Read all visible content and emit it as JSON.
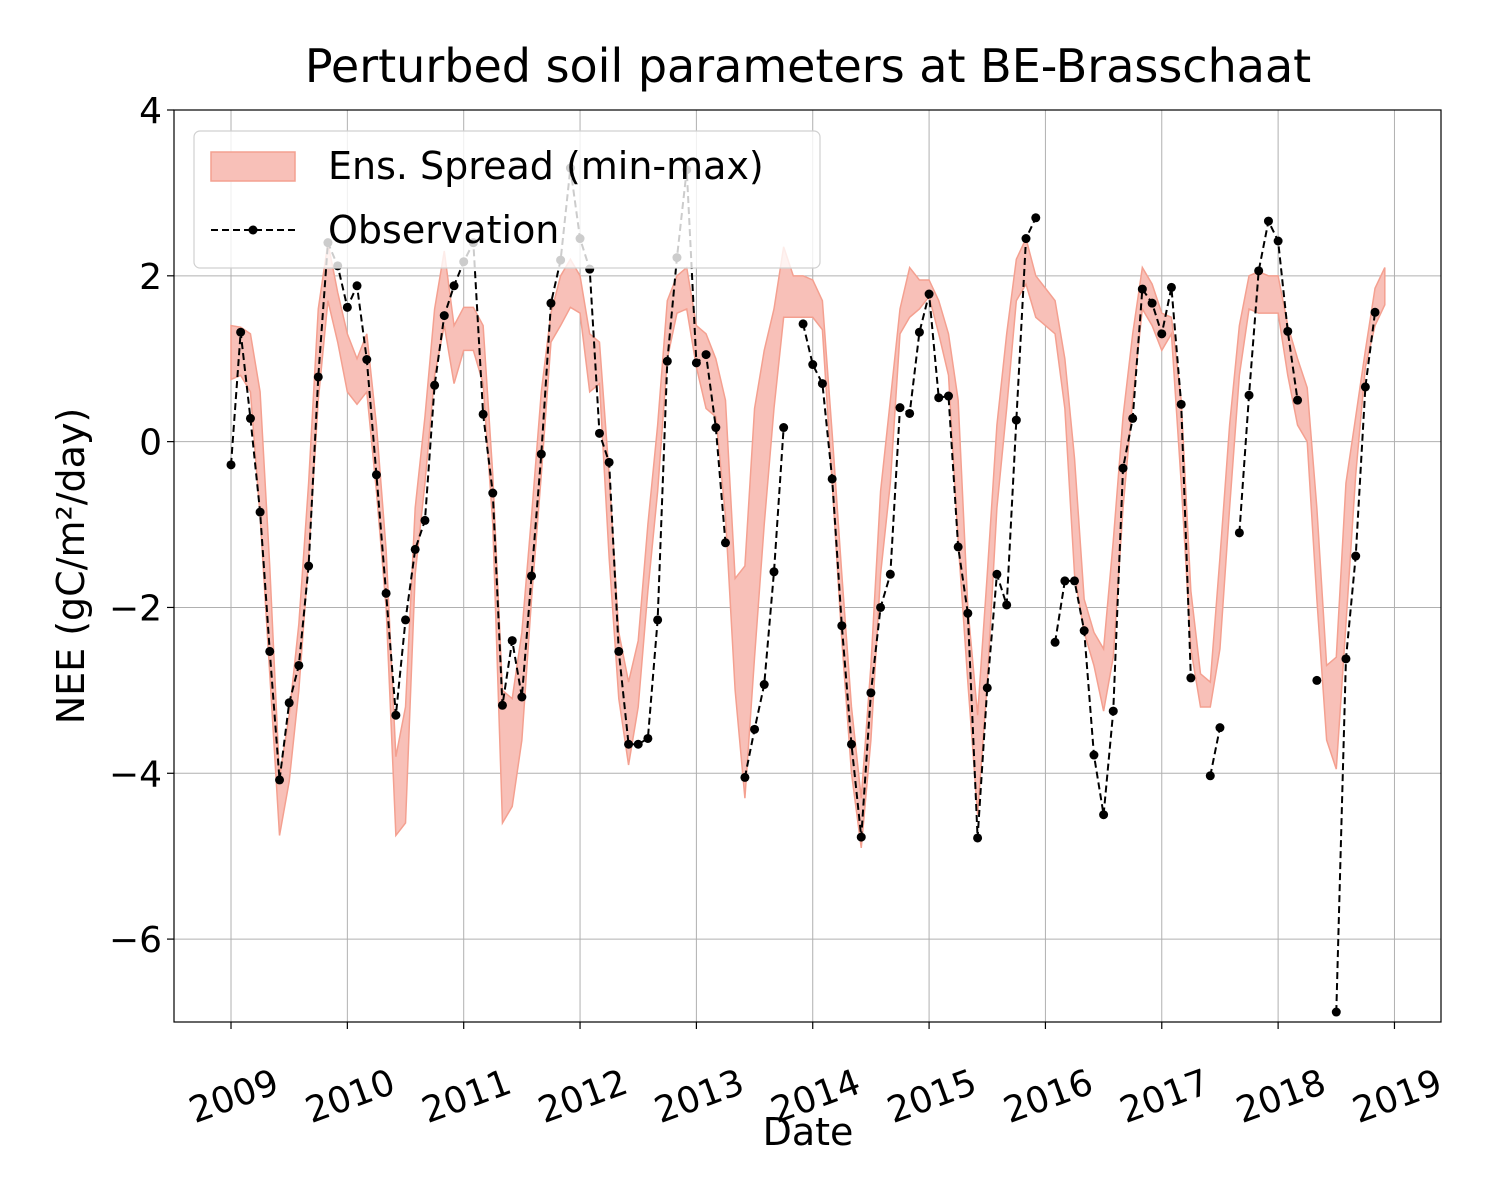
{
  "chart_data": {
    "type": "line",
    "title": "Perturbed soil parameters at BE-Brasschaat",
    "xlabel": "Date",
    "ylabel": "NEE  (gC/m²/day)",
    "x": [
      2009,
      2009.083,
      2009.167,
      2009.25,
      2009.333,
      2009.417,
      2009.5,
      2009.583,
      2009.667,
      2009.75,
      2009.833,
      2009.917,
      2010,
      2010.083,
      2010.167,
      2010.25,
      2010.333,
      2010.417,
      2010.5,
      2010.583,
      2010.667,
      2010.75,
      2010.833,
      2010.917,
      2011,
      2011.083,
      2011.167,
      2011.25,
      2011.333,
      2011.417,
      2011.5,
      2011.583,
      2011.667,
      2011.75,
      2011.833,
      2011.917,
      2012,
      2012.083,
      2012.167,
      2012.25,
      2012.333,
      2012.417,
      2012.5,
      2012.583,
      2012.667,
      2012.75,
      2012.833,
      2012.917,
      2013,
      2013.083,
      2013.167,
      2013.25,
      2013.333,
      2013.417,
      2013.5,
      2013.583,
      2013.667,
      2013.75,
      2013.833,
      2013.917,
      2014,
      2014.083,
      2014.167,
      2014.25,
      2014.333,
      2014.417,
      2014.5,
      2014.583,
      2014.667,
      2014.75,
      2014.833,
      2014.917,
      2015,
      2015.083,
      2015.167,
      2015.25,
      2015.333,
      2015.417,
      2015.5,
      2015.583,
      2015.667,
      2015.75,
      2015.833,
      2015.917,
      2016,
      2016.083,
      2016.167,
      2016.25,
      2016.333,
      2016.417,
      2016.5,
      2016.583,
      2016.667,
      2016.75,
      2016.833,
      2016.917,
      2017,
      2017.083,
      2017.167,
      2017.25,
      2017.333,
      2017.417,
      2017.5,
      2017.583,
      2017.667,
      2017.75,
      2017.833,
      2017.917,
      2018,
      2018.083,
      2018.167,
      2018.25,
      2018.333,
      2018.417,
      2018.5,
      2018.583,
      2018.667,
      2018.75,
      2018.833,
      2018.917
    ],
    "series": [
      {
        "name": "Ens. Spread (min-max)",
        "type": "band",
        "color": "#f8c0b8",
        "edgecolor": "#f4a090",
        "upper": [
          1.4,
          1.38,
          1.3,
          0.6,
          -1.5,
          -4.05,
          -3.3,
          -2.2,
          -0.5,
          1.6,
          2.4,
          1.8,
          1.3,
          1.0,
          1.3,
          0.2,
          -1.3,
          -3.8,
          -3.2,
          -0.8,
          0.3,
          1.6,
          2.3,
          1.4,
          1.62,
          1.62,
          1.4,
          -0.4,
          -3.0,
          -3.1,
          -2.3,
          -0.9,
          0.6,
          1.55,
          2.0,
          2.2,
          2.0,
          1.3,
          1.2,
          -0.4,
          -2.3,
          -2.9,
          -2.4,
          -1.0,
          0.2,
          1.7,
          2.0,
          2.1,
          1.4,
          1.3,
          1.0,
          0.5,
          -1.65,
          -1.5,
          0.4,
          1.1,
          1.6,
          2.35,
          2.0,
          2.0,
          1.95,
          1.7,
          0.1,
          -1.6,
          -3.2,
          -4.3,
          -2.7,
          -0.6,
          0.5,
          1.6,
          2.1,
          1.95,
          1.95,
          1.7,
          1.3,
          0.5,
          -2.0,
          -3.3,
          -1.6,
          0.2,
          1.3,
          2.2,
          2.45,
          2.0,
          1.85,
          1.7,
          1.0,
          -0.2,
          -1.9,
          -2.3,
          -2.5,
          -1.2,
          0.3,
          1.3,
          2.1,
          1.9,
          1.55,
          1.5,
          0.5,
          -1.8,
          -2.8,
          -2.9,
          -1.4,
          0.2,
          1.4,
          2.0,
          2.05,
          2.0,
          2.0,
          1.4,
          1.0,
          0.65,
          -0.8,
          -2.7,
          -2.6,
          -0.5,
          0.3,
          1.1,
          1.85,
          2.1
        ],
        "lower": [
          0.75,
          0.8,
          0.6,
          -0.9,
          -2.8,
          -4.75,
          -4.1,
          -3.0,
          -1.4,
          0.5,
          1.7,
          1.2,
          0.6,
          0.45,
          0.6,
          -0.6,
          -2.0,
          -4.75,
          -4.6,
          -1.6,
          -0.5,
          0.8,
          1.4,
          0.7,
          1.1,
          1.1,
          0.7,
          -1.0,
          -4.6,
          -4.4,
          -3.6,
          -1.9,
          -0.4,
          1.2,
          1.4,
          1.62,
          1.55,
          0.6,
          0.7,
          -1.4,
          -3.1,
          -3.9,
          -3.2,
          -1.8,
          -0.6,
          1.0,
          1.55,
          1.6,
          0.9,
          0.4,
          0.3,
          -0.9,
          -3.0,
          -4.3,
          -2.6,
          -1.0,
          0.4,
          1.5,
          1.5,
          1.5,
          1.5,
          1.35,
          -0.5,
          -2.4,
          -4.0,
          -4.9,
          -3.6,
          -1.6,
          -0.5,
          1.3,
          1.5,
          1.6,
          1.75,
          1.3,
          0.8,
          -1.2,
          -2.9,
          -4.5,
          -2.9,
          -0.8,
          0.4,
          1.7,
          1.9,
          1.5,
          1.4,
          1.3,
          0.4,
          -1.6,
          -2.3,
          -2.7,
          -3.25,
          -2.6,
          -0.8,
          0.5,
          1.6,
          1.4,
          1.1,
          1.3,
          -0.5,
          -2.5,
          -3.2,
          -3.2,
          -2.5,
          -0.8,
          0.8,
          1.6,
          1.55,
          1.55,
          1.55,
          0.8,
          0.2,
          0.0,
          -1.9,
          -3.6,
          -3.95,
          -2.2,
          -0.4,
          0.9,
          1.4,
          1.65
        ]
      },
      {
        "name": "Observation",
        "type": "line",
        "color": "#000000",
        "values": [
          -0.28,
          1.32,
          0.28,
          -0.85,
          -2.53,
          -4.08,
          -3.15,
          -2.7,
          -1.5,
          0.78,
          2.4,
          2.12,
          1.62,
          1.88,
          0.99,
          -0.4,
          -1.83,
          -3.3,
          -2.15,
          -1.3,
          -0.95,
          0.68,
          1.52,
          1.88,
          2.17,
          2.4,
          0.33,
          -0.62,
          -3.18,
          -2.4,
          -3.08,
          -1.62,
          -0.15,
          1.67,
          2.19,
          3.3,
          2.45,
          2.08,
          0.1,
          -0.25,
          -2.53,
          -3.65,
          -3.65,
          -3.58,
          -2.15,
          0.97,
          2.22,
          3.28,
          0.95,
          1.05,
          0.17,
          -1.22,
          null,
          -4.05,
          -3.47,
          -2.93,
          -1.57,
          0.17,
          null,
          1.42,
          0.93,
          0.7,
          -0.45,
          -2.22,
          -3.65,
          -4.77,
          -3.03,
          -2.0,
          -1.6,
          0.41,
          0.34,
          1.32,
          1.78,
          0.53,
          0.55,
          -1.27,
          -2.07,
          -4.78,
          -2.97,
          -1.6,
          -1.97,
          0.26,
          2.45,
          2.7,
          null,
          -2.42,
          -1.68,
          -1.68,
          -2.28,
          -3.78,
          -4.5,
          -3.25,
          -0.32,
          0.28,
          1.84,
          1.67,
          1.3,
          1.86,
          0.45,
          -2.85,
          null,
          -4.03,
          -3.45,
          null,
          -1.1,
          0.56,
          2.06,
          2.66,
          2.42,
          1.33,
          0.5,
          null,
          -2.88,
          null,
          -6.88,
          -2.62,
          -1.38,
          0.66,
          1.56,
          null
        ]
      }
    ],
    "xlim": [
      2008.51,
      2019.4
    ],
    "ylim": [
      -7,
      4
    ],
    "xticks": [
      2009,
      2010,
      2011,
      2012,
      2013,
      2014,
      2015,
      2016,
      2017,
      2018,
      2019
    ],
    "yticks": [
      {
        "value": -6,
        "label": "−6"
      },
      {
        "value": -4,
        "label": "−4"
      },
      {
        "value": -2,
        "label": "−2"
      },
      0,
      2,
      4
    ],
    "grid": true,
    "legend": "upper left"
  }
}
